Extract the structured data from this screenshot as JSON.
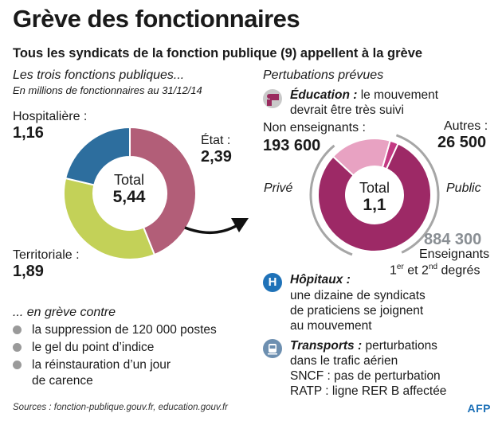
{
  "title": "Grève des fonctionnaires",
  "subtitle": "Tous les syndicats de la fonction publique (9) appellent à la grève",
  "left": {
    "heading": "Les trois fonctions publiques...",
    "subheading": "En millions de fonctionnaires au 31/12/14",
    "center_label": "Total",
    "center_value": "5,44",
    "labels": {
      "hosp_name": "Hospitalière :",
      "hosp_value": "1,16",
      "etat_name": "État :",
      "etat_value": "2,39",
      "terr_name": "Territoriale :",
      "terr_value": "1,89"
    }
  },
  "right": {
    "heading": "Pertubations prévues",
    "center_label": "Total",
    "center_value": "1,1",
    "non_ens_label": "Non enseignants :",
    "non_ens_value": "193 600",
    "autres_label": "Autres :",
    "autres_value": "26 500",
    "ens_value": "884 300",
    "ens_label": "Enseignants",
    "ens_degrees_1": "1",
    "ens_degrees_sup1": "er",
    "ens_degrees_mid": " et 2",
    "ens_degrees_sup2": "nd",
    "ens_degrees_end": " degrés",
    "prive": "Privé",
    "public": "Public"
  },
  "education": {
    "title": "Éducation :",
    "line1_rest": " le mouvement",
    "line2": "devrait être très suivi"
  },
  "hopitaux": {
    "icon_letter": "H",
    "title": "Hôpitaux :",
    "line1": "une dizaine de syndicats",
    "line2": "de praticiens se joignent",
    "line3": "au mouvement"
  },
  "transports": {
    "title": "Transports :",
    "line1_rest": " perturbations",
    "line2": "dans le trafic aérien",
    "line3": "SNCF : pas de perturbation",
    "line4": "RATP : ligne RER B affectée"
  },
  "strike": {
    "heading": "... en grève contre",
    "items": [
      "la suppression de 120 000 postes",
      "le gel du point d’indice",
      "la réinstauration d’un jour",
      "de carence"
    ]
  },
  "sources": "Sources : fonction-publique.gouv.fr, education.gouv.fr",
  "brand": "AFP",
  "chart_data": [
    {
      "type": "pie",
      "title": "Les trois fonctions publiques...",
      "unit": "millions de fonctionnaires",
      "categories": [
        "État",
        "Territoriale",
        "Hospitalière"
      ],
      "values": [
        2.39,
        1.89,
        1.16
      ],
      "total": 5.44,
      "colors": [
        "#b25e78",
        "#c3d158",
        "#2d6e9e"
      ]
    },
    {
      "type": "pie",
      "title": "Pertubations prévues",
      "unit": "personnes",
      "categories": [
        "Autres",
        "Enseignants",
        "Non enseignants"
      ],
      "values": [
        26500,
        884300,
        193600
      ],
      "total_label": "1,1",
      "colors": [
        "#c33a83",
        "#9d2966",
        "#e8a2c2"
      ]
    }
  ],
  "colors": {
    "accent_blue": "#1f72b8",
    "text": "#1a1a1a",
    "grey": "#8a8f94"
  }
}
